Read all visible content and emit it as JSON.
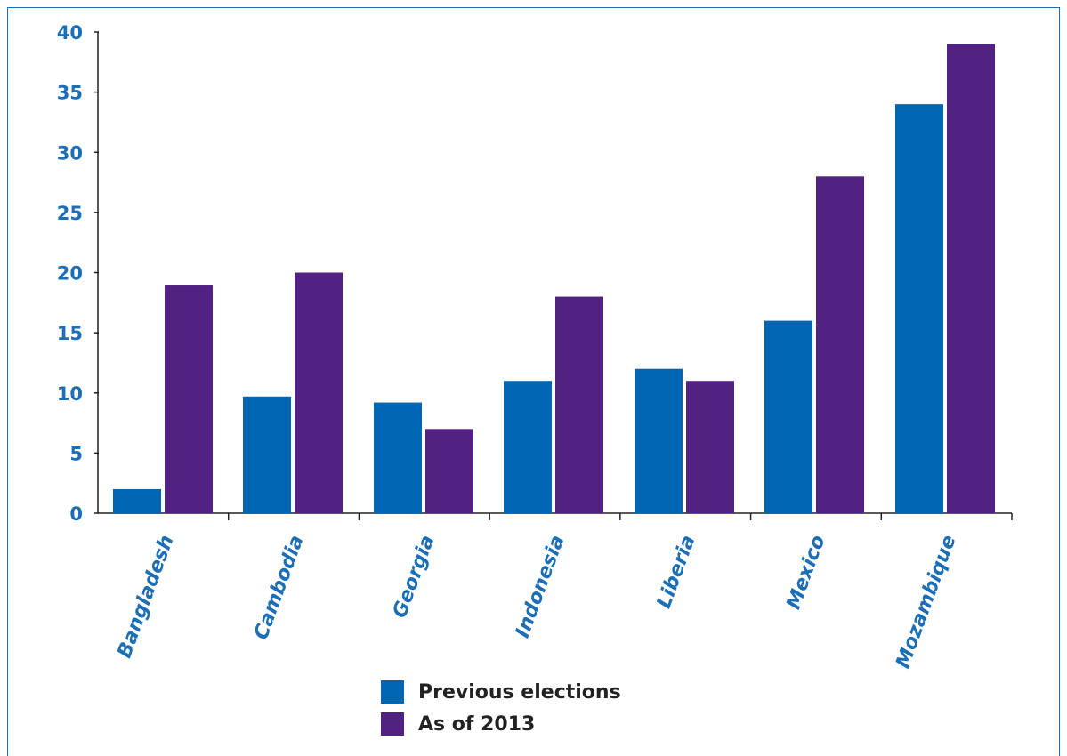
{
  "chart_data": {
    "type": "bar",
    "categories": [
      "Bangladesh",
      "Cambodia",
      "Georgia",
      "Indonesia",
      "Liberia",
      "Mexico",
      "Mozambique"
    ],
    "series": [
      {
        "name": "Previous elections",
        "color": "#0066b3",
        "values": [
          2,
          9.7,
          9.2,
          11,
          12,
          16,
          34
        ]
      },
      {
        "name": "As of 2013",
        "color": "#512281",
        "values": [
          19,
          20,
          7,
          18,
          11,
          28,
          39
        ]
      }
    ],
    "ylim": [
      0,
      40
    ],
    "yticks": [
      0,
      5,
      10,
      15,
      20,
      25,
      30,
      35,
      40
    ],
    "title": "",
    "xlabel": "",
    "ylabel": "",
    "legend_position": "bottom-center",
    "grid": false
  }
}
